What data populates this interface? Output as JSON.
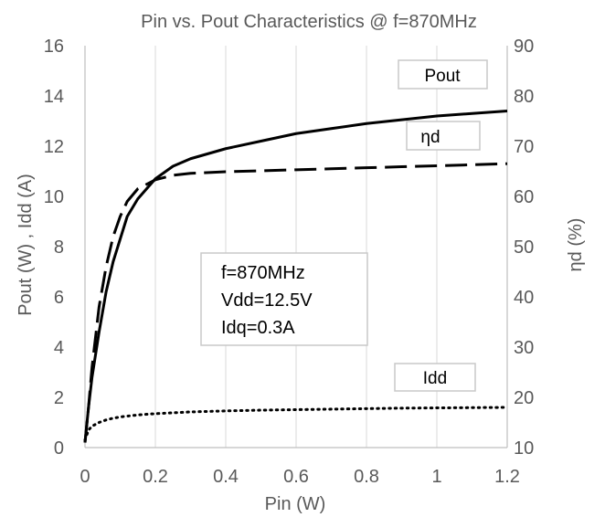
{
  "chart_data": {
    "type": "line",
    "title": "Pin vs. Pout  Characteristics @ f=870MHz",
    "xlabel": "Pin (W)",
    "ylabel": "Pout (W) , Idd (A)",
    "y2label": "ηd (%)",
    "xlim": [
      0,
      1.2
    ],
    "ylim": [
      0,
      16
    ],
    "y2lim": [
      10,
      90
    ],
    "x_ticks": [
      "0",
      "0.2",
      "0.4",
      "0.6",
      "0.8",
      "1",
      "1.2"
    ],
    "y_ticks": [
      "0",
      "2",
      "4",
      "6",
      "8",
      "10",
      "12",
      "14",
      "16"
    ],
    "y2_ticks": [
      "10",
      "20",
      "30",
      "40",
      "50",
      "60",
      "70",
      "80",
      "90"
    ],
    "grid": {
      "vertical": true,
      "horizontal": false
    },
    "series": [
      {
        "name": "Pout",
        "axis": "left",
        "style": "solid",
        "x": [
          0,
          0.01,
          0.02,
          0.04,
          0.06,
          0.08,
          0.1,
          0.12,
          0.15,
          0.2,
          0.25,
          0.3,
          0.4,
          0.5,
          0.6,
          0.7,
          0.8,
          0.9,
          1.0,
          1.1,
          1.2
        ],
        "values": [
          0.2,
          1.6,
          2.8,
          4.6,
          6.2,
          7.4,
          8.3,
          9.2,
          9.9,
          10.7,
          11.2,
          11.5,
          11.9,
          12.2,
          12.5,
          12.7,
          12.9,
          13.05,
          13.2,
          13.3,
          13.4
        ]
      },
      {
        "name": "ηd",
        "axis": "right",
        "style": "dashed",
        "x": [
          0,
          0.01,
          0.02,
          0.04,
          0.06,
          0.08,
          0.1,
          0.12,
          0.15,
          0.2,
          0.25,
          0.3,
          0.4,
          0.5,
          0.6,
          0.7,
          0.8,
          0.9,
          1.0,
          1.1,
          1.2
        ],
        "values": [
          11,
          18,
          26,
          38,
          46,
          52,
          56,
          59,
          61.5,
          63.3,
          64.2,
          64.6,
          64.9,
          65.1,
          65.3,
          65.5,
          65.7,
          65.9,
          66.1,
          66.3,
          66.5
        ]
      },
      {
        "name": "Idd",
        "axis": "left",
        "style": "dotted",
        "x": [
          0,
          0.01,
          0.02,
          0.04,
          0.06,
          0.08,
          0.1,
          0.15,
          0.2,
          0.3,
          0.4,
          0.5,
          0.6,
          0.7,
          0.8,
          0.9,
          1.0,
          1.1,
          1.2
        ],
        "values": [
          0.3,
          0.7,
          0.85,
          1.0,
          1.1,
          1.17,
          1.22,
          1.3,
          1.35,
          1.42,
          1.46,
          1.49,
          1.51,
          1.53,
          1.55,
          1.57,
          1.58,
          1.59,
          1.6
        ]
      }
    ],
    "legend_labels": {
      "pout": "Pout",
      "eta": "ηd",
      "idd": "Idd"
    },
    "annotation_lines": [
      "f=870MHz",
      "Vdd=12.5V",
      "Idq=0.3A"
    ]
  }
}
